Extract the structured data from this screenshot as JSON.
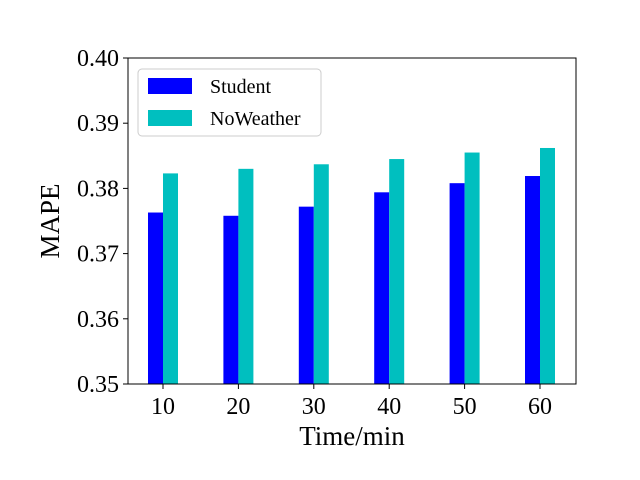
{
  "chart_data": {
    "type": "bar",
    "categories": [
      "10",
      "20",
      "30",
      "40",
      "50",
      "60"
    ],
    "series": [
      {
        "name": "Student",
        "values": [
          0.3763,
          0.3758,
          0.3772,
          0.3794,
          0.3808,
          0.3819
        ],
        "color": "#0000ff"
      },
      {
        "name": "NoWeather",
        "values": [
          0.3823,
          0.383,
          0.3837,
          0.3845,
          0.3855,
          0.3862
        ],
        "color": "#00bfbf"
      }
    ],
    "title": "",
    "xlabel": "Time/min",
    "ylabel": "MAPE",
    "ylim": [
      0.35,
      0.4
    ],
    "yticks": [
      "0.35",
      "0.36",
      "0.37",
      "0.38",
      "0.39",
      "0.40"
    ],
    "grid": false,
    "legend_position": "top-left"
  }
}
